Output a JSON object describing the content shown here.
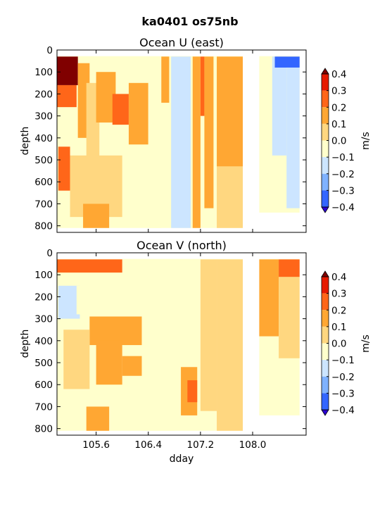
{
  "figure": {
    "title": "ka0401 os75nb",
    "xlabel": "dday",
    "colorbar_label": "m/s",
    "colormap": [
      "#2b00d4",
      "#3366ff",
      "#7fb2ff",
      "#cce5ff",
      "#ffffcc",
      "#ffd780",
      "#ffa733",
      "#ff6619",
      "#e61a00",
      "#800000"
    ],
    "missing_color": "#ffffff"
  },
  "chart_data": [
    {
      "type": "heatmap",
      "title": "Ocean U (east)",
      "xlabel": "",
      "ylabel": "depth",
      "xlim": [
        105.0,
        108.82
      ],
      "ylim": [
        830,
        0
      ],
      "xticks": [
        "105.6",
        "106.4",
        "107.2",
        "108.0"
      ],
      "yticks": [
        "0",
        "100",
        "200",
        "300",
        "400",
        "500",
        "600",
        "700",
        "800"
      ],
      "colorbar": {
        "label": "m/s",
        "levels": [
          -0.4,
          -0.3,
          -0.2,
          -0.1,
          0.0,
          0.1,
          0.2,
          0.3,
          0.4
        ],
        "ticklabels": [
          "0.4",
          "0.3",
          "0.2",
          "0.1",
          "0.0",
          "−0.1",
          "−0.2",
          "−0.3",
          "−0.4"
        ],
        "extend": "both"
      },
      "data_gap_dday": [
        107.85,
        108.1
      ],
      "regions": [
        {
          "x": [
            105.0,
            105.32
          ],
          "depth": [
            30,
            160
          ],
          "value": 0.45
        },
        {
          "x": [
            105.0,
            105.3
          ],
          "depth": [
            160,
            260
          ],
          "value": 0.25
        },
        {
          "x": [
            105.32,
            105.5
          ],
          "depth": [
            60,
            400
          ],
          "value": 0.12
        },
        {
          "x": [
            105.45,
            105.65
          ],
          "depth": [
            150,
            500
          ],
          "value": 0.05
        },
        {
          "x": [
            105.6,
            105.9
          ],
          "depth": [
            100,
            330
          ],
          "value": 0.12
        },
        {
          "x": [
            105.85,
            106.1
          ],
          "depth": [
            200,
            340
          ],
          "value": 0.2
        },
        {
          "x": [
            106.1,
            106.4
          ],
          "depth": [
            150,
            430
          ],
          "value": 0.12
        },
        {
          "x": [
            105.02,
            105.2
          ],
          "depth": [
            440,
            640
          ],
          "value": 0.2
        },
        {
          "x": [
            105.2,
            106.0
          ],
          "depth": [
            480,
            760
          ],
          "value": 0.05
        },
        {
          "x": [
            105.4,
            105.8
          ],
          "depth": [
            700,
            810
          ],
          "value": 0.12
        },
        {
          "x": [
            106.4,
            106.6
          ],
          "depth": [
            30,
            810
          ],
          "value": -0.05
        },
        {
          "x": [
            106.6,
            106.72
          ],
          "depth": [
            30,
            240
          ],
          "value": 0.12
        },
        {
          "x": [
            106.75,
            107.05
          ],
          "depth": [
            30,
            810
          ],
          "value": -0.12
        },
        {
          "x": [
            107.08,
            107.2
          ],
          "depth": [
            30,
            810
          ],
          "value": 0.12
        },
        {
          "x": [
            107.2,
            107.26
          ],
          "depth": [
            30,
            300
          ],
          "value": 0.3
        },
        {
          "x": [
            107.26,
            107.4
          ],
          "depth": [
            30,
            720
          ],
          "value": 0.12
        },
        {
          "x": [
            107.45,
            107.85
          ],
          "depth": [
            30,
            530
          ],
          "value": 0.12
        },
        {
          "x": [
            107.45,
            107.85
          ],
          "depth": [
            530,
            810
          ],
          "value": 0.05
        },
        {
          "x": [
            108.1,
            108.3
          ],
          "depth": [
            30,
            300
          ],
          "value": -0.05
        },
        {
          "x": [
            108.3,
            108.52
          ],
          "depth": [
            30,
            480
          ],
          "value": -0.12
        },
        {
          "x": [
            108.34,
            108.72
          ],
          "depth": [
            30,
            80
          ],
          "value": -0.35
        },
        {
          "x": [
            108.52,
            108.72
          ],
          "depth": [
            80,
            720
          ],
          "value": -0.15
        }
      ]
    },
    {
      "type": "heatmap",
      "title": "Ocean V (north)",
      "xlabel": "dday",
      "ylabel": "depth",
      "xlim": [
        105.0,
        108.82
      ],
      "ylim": [
        830,
        0
      ],
      "xticks": [
        "105.6",
        "106.4",
        "107.2",
        "108.0"
      ],
      "yticks": [
        "0",
        "100",
        "200",
        "300",
        "400",
        "500",
        "600",
        "700",
        "800"
      ],
      "colorbar": {
        "label": "m/s",
        "levels": [
          -0.4,
          -0.3,
          -0.2,
          -0.1,
          0.0,
          0.1,
          0.2,
          0.3,
          0.4
        ],
        "ticklabels": [
          "0.4",
          "0.3",
          "0.2",
          "0.1",
          "0.0",
          "−0.1",
          "−0.2",
          "−0.3",
          "−0.4"
        ],
        "extend": "both"
      },
      "data_gap_dday": [
        107.85,
        108.1
      ],
      "regions": [
        {
          "x": [
            105.0,
            106.0
          ],
          "depth": [
            30,
            90
          ],
          "value": 0.2
        },
        {
          "x": [
            105.02,
            105.35
          ],
          "depth": [
            150,
            300
          ],
          "value": -0.2
        },
        {
          "x": [
            105.3,
            105.7
          ],
          "depth": [
            150,
            280
          ],
          "value": -0.1
        },
        {
          "x": [
            105.5,
            106.4
          ],
          "depth": [
            290,
            420
          ],
          "value": 0.12
        },
        {
          "x": [
            105.1,
            105.5
          ],
          "depth": [
            350,
            620
          ],
          "value": 0.05
        },
        {
          "x": [
            105.6,
            106.0
          ],
          "depth": [
            400,
            600
          ],
          "value": 0.12
        },
        {
          "x": [
            106.0,
            106.4
          ],
          "depth": [
            470,
            560
          ],
          "value": 0.15
        },
        {
          "x": [
            106.3,
            106.8
          ],
          "depth": [
            30,
            810
          ],
          "value": -0.05
        },
        {
          "x": [
            106.9,
            107.15
          ],
          "depth": [
            520,
            740
          ],
          "value": 0.12
        },
        {
          "x": [
            107.0,
            107.15
          ],
          "depth": [
            580,
            680
          ],
          "value": 0.2
        },
        {
          "x": [
            107.2,
            107.45
          ],
          "depth": [
            30,
            720
          ],
          "value": 0.05
        },
        {
          "x": [
            107.45,
            107.85
          ],
          "depth": [
            30,
            810
          ],
          "value": 0.05
        },
        {
          "x": [
            105.45,
            105.8
          ],
          "depth": [
            700,
            810
          ],
          "value": 0.12
        },
        {
          "x": [
            108.1,
            108.4
          ],
          "depth": [
            30,
            380
          ],
          "value": 0.12
        },
        {
          "x": [
            108.4,
            108.72
          ],
          "depth": [
            30,
            110
          ],
          "value": 0.3
        },
        {
          "x": [
            108.4,
            108.72
          ],
          "depth": [
            110,
            480
          ],
          "value": 0.08
        }
      ]
    }
  ]
}
